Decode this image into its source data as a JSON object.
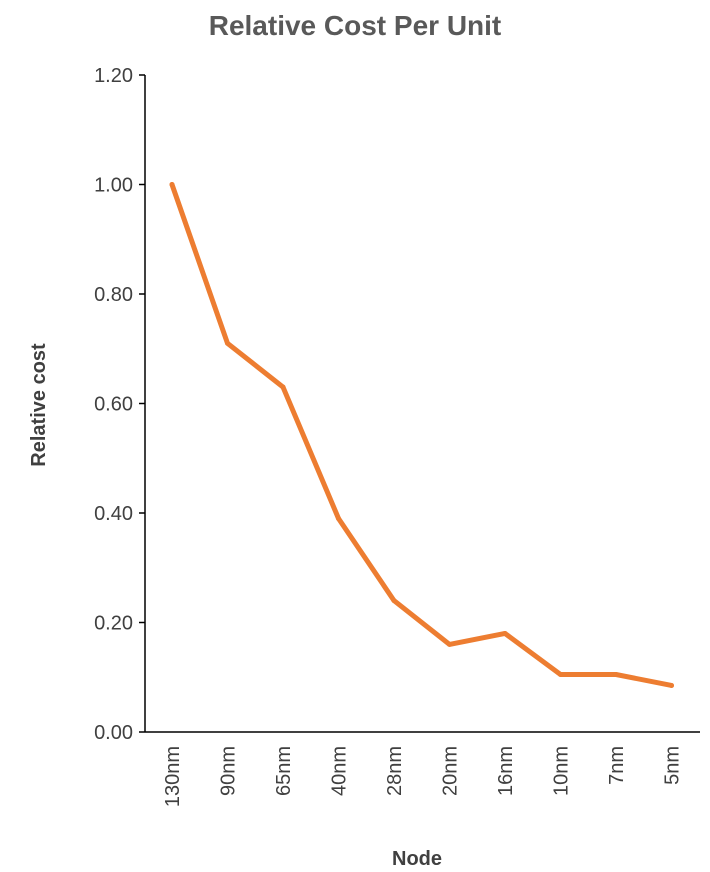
{
  "chart_data": {
    "type": "line",
    "title": "Relative Cost Per Unit",
    "xlabel": "Node",
    "ylabel": "Relative cost",
    "categories": [
      "130nm",
      "90nm",
      "65nm",
      "40nm",
      "28nm",
      "20nm",
      "16nm",
      "10nm",
      "7nm",
      "5nm"
    ],
    "series": [
      {
        "values": [
          1.0,
          0.71,
          0.63,
          0.39,
          0.24,
          0.16,
          0.18,
          0.105,
          0.105,
          0.085
        ],
        "color": "#ED7D31"
      }
    ],
    "ylim": [
      0,
      1.2
    ],
    "yticks": [
      "0.00",
      "0.20",
      "0.40",
      "0.60",
      "0.80",
      "1.00",
      "1.20"
    ],
    "grid": false,
    "legend": "none"
  }
}
